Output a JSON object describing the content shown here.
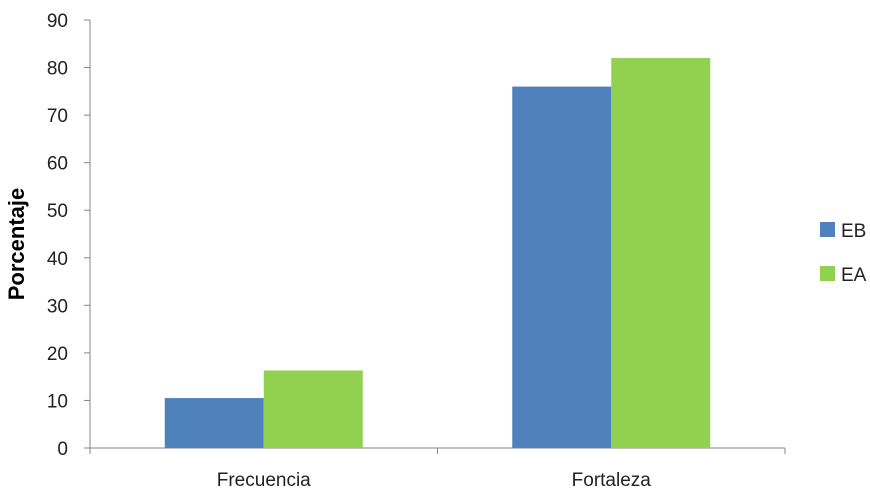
{
  "chart_data": {
    "type": "bar",
    "title": "",
    "xlabel": "",
    "ylabel": "Porcentaje",
    "ylim": [
      0,
      90
    ],
    "yticks": [
      0,
      10,
      20,
      30,
      40,
      50,
      60,
      70,
      80,
      90
    ],
    "categories": [
      "Frecuencia",
      "Fortaleza"
    ],
    "series": [
      {
        "name": "EB",
        "color": "#4f81bd",
        "values": [
          10.5,
          76
        ]
      },
      {
        "name": "EA",
        "color": "#92d050",
        "values": [
          16.3,
          82
        ]
      }
    ],
    "grid": false,
    "legend_position": "right"
  }
}
